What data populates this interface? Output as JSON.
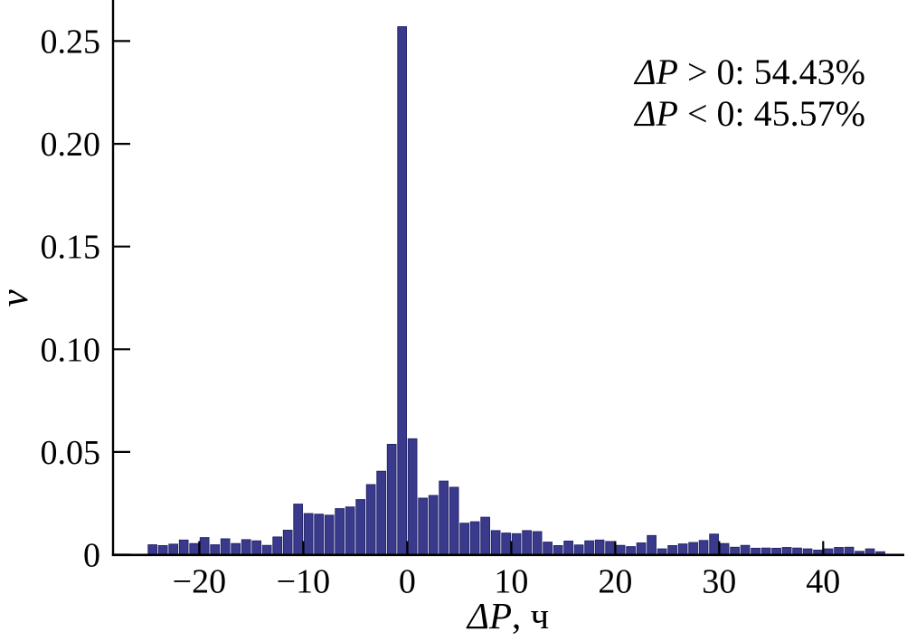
{
  "figure": {
    "background": "#ffffff"
  },
  "labels": {
    "y_axis": "ν",
    "x_axis": {
      "symbol": "ΔP",
      "rest": ", ч"
    },
    "annotation": [
      {
        "symbol": "ΔP",
        "rest": " > 0: 54.43%"
      },
      {
        "symbol": "ΔP",
        "rest": " < 0: 45.57%"
      }
    ]
  },
  "chart_data": {
    "type": "bar",
    "subtype": "histogram",
    "title": "",
    "xlabel": "ΔP, ч",
    "ylabel": "ν",
    "annotations": [
      "ΔP > 0: 54.43%",
      "ΔP < 0: 45.57%"
    ],
    "legend_position": "none",
    "grid": false,
    "bin_start": -25,
    "bin_width": 1,
    "values": [
      0.0048,
      0.0044,
      0.0051,
      0.0071,
      0.0054,
      0.0083,
      0.0048,
      0.0077,
      0.0054,
      0.0073,
      0.0067,
      0.0045,
      0.0086,
      0.0119,
      0.0246,
      0.02,
      0.0197,
      0.0192,
      0.0224,
      0.0232,
      0.0268,
      0.0341,
      0.0406,
      0.0537,
      0.257,
      0.0564,
      0.0275,
      0.0288,
      0.0358,
      0.0328,
      0.0153,
      0.016,
      0.0182,
      0.0117,
      0.0105,
      0.0102,
      0.0117,
      0.0112,
      0.0061,
      0.0044,
      0.0066,
      0.0047,
      0.0067,
      0.0071,
      0.0064,
      0.0045,
      0.0039,
      0.0057,
      0.0093,
      0.0028,
      0.0044,
      0.0052,
      0.0059,
      0.0069,
      0.01,
      0.0054,
      0.0036,
      0.0045,
      0.0031,
      0.0032,
      0.0031,
      0.0035,
      0.0032,
      0.0028,
      0.0022,
      0.0028,
      0.0035,
      0.0036,
      0.0016,
      0.0028,
      0.0014
    ],
    "xticks": [
      {
        "v": -20,
        "label": "−20"
      },
      {
        "v": -10,
        "label": "−10"
      },
      {
        "v": 0,
        "label": "0"
      },
      {
        "v": 10,
        "label": "10"
      },
      {
        "v": 20,
        "label": "20"
      },
      {
        "v": 30,
        "label": "30"
      },
      {
        "v": 40,
        "label": "40"
      }
    ],
    "yticks": [
      {
        "v": 0,
        "label": "0"
      },
      {
        "v": 0.05,
        "label": "0.05"
      },
      {
        "v": 0.1,
        "label": "0.10"
      },
      {
        "v": 0.15,
        "label": "0.15"
      },
      {
        "v": 0.2,
        "label": "0.20"
      },
      {
        "v": 0.25,
        "label": "0.25"
      }
    ],
    "xlim": [
      -28.3,
      47.8
    ],
    "ylim": [
      0,
      0.27
    ],
    "bar_color": "#3A3A8C",
    "bar_edge_color": "#26266E"
  }
}
